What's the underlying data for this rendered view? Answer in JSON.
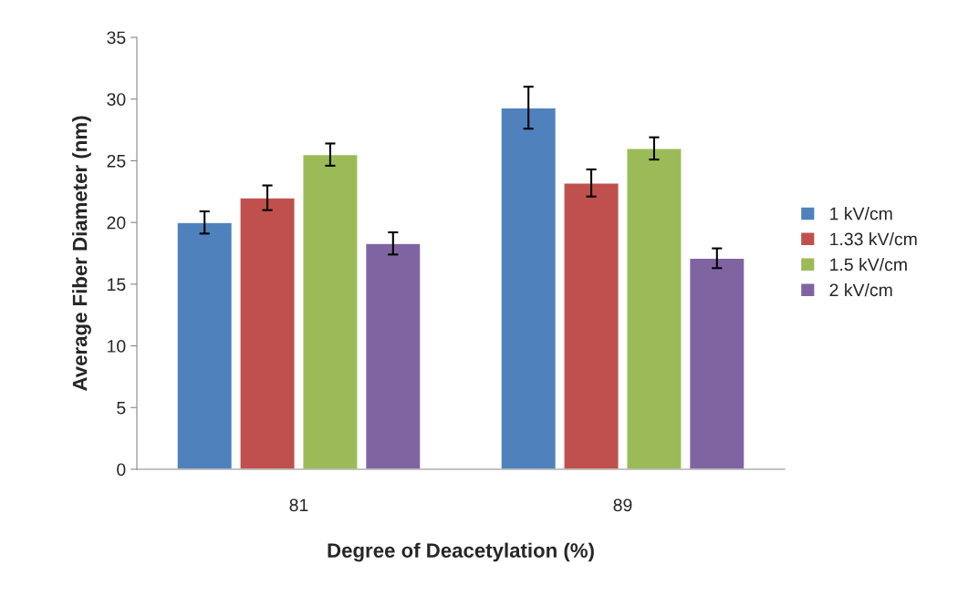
{
  "chart_data": {
    "type": "bar",
    "xlabel": "Degree of Deacetylation (%)",
    "ylabel": "Average Fiber Diameter (nm)",
    "categories": [
      "81",
      "89"
    ],
    "series": [
      {
        "name": "1 kV/cm",
        "color": "#4f81bd",
        "values": [
          20.0,
          29.3
        ],
        "errors": [
          0.9,
          1.7
        ]
      },
      {
        "name": "1.33 kV/cm",
        "color": "#c0504d",
        "values": [
          22.0,
          23.2
        ],
        "errors": [
          1.0,
          1.1
        ]
      },
      {
        "name": "1.5 kV/cm",
        "color": "#9bbb59",
        "values": [
          25.5,
          26.0
        ],
        "errors": [
          0.9,
          0.9
        ]
      },
      {
        "name": "2 kV/cm",
        "color": "#8064a2",
        "values": [
          18.3,
          17.1
        ],
        "errors": [
          0.9,
          0.8
        ]
      }
    ],
    "ylim": [
      0,
      35
    ],
    "yticks": [
      0,
      5,
      10,
      15,
      20,
      25,
      30,
      35
    ],
    "grid": false,
    "legend": "right"
  }
}
